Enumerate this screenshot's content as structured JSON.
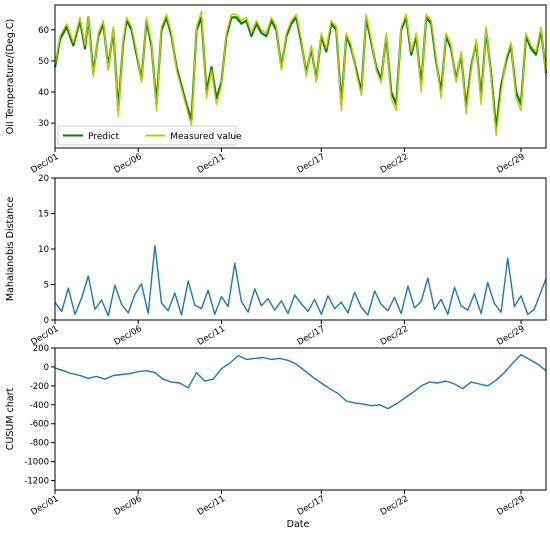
{
  "chart_data": [
    {
      "type": "line",
      "ylabel": "Oil Temperature/(Deg.C)",
      "xlabel": "",
      "ylim": [
        22,
        68
      ],
      "yticks": [
        30,
        40,
        50,
        60
      ],
      "x_ticks": [
        "Dec/01",
        "Dec/06",
        "Dec/11",
        "Dec/17",
        "Dec/22",
        "Dec/29"
      ],
      "grid": false,
      "legend_position": "lower-left",
      "series": [
        {
          "name": "Predict",
          "color": "#008000",
          "x": [
            0,
            0.3,
            0.7,
            1.1,
            1.5,
            1.8,
            2.0,
            2.3,
            2.6,
            2.9,
            3.2,
            3.5,
            3.8,
            4.1,
            4.3,
            4.6,
            4.9,
            5.2,
            5.5,
            5.8,
            6.1,
            6.4,
            6.7,
            7.0,
            7.3,
            7.6,
            7.9,
            8.2,
            8.5,
            8.8,
            9.1,
            9.4,
            9.7,
            10.0,
            10.3,
            10.6,
            10.9,
            11.2,
            11.5,
            11.8,
            12.1,
            12.4,
            12.7,
            13.0,
            13.3,
            13.6,
            13.9,
            14.2,
            14.5,
            14.8,
            15.1,
            15.4,
            15.7,
            16.0,
            16.3,
            16.6,
            16.9,
            17.2,
            17.5,
            17.8,
            18.1,
            18.4,
            18.7,
            19.0,
            19.3,
            19.6,
            19.9,
            20.2,
            20.5,
            20.8,
            21.1,
            21.4,
            21.7,
            22.0,
            22.3,
            22.6,
            22.9,
            23.2,
            23.5,
            23.8,
            24.1,
            24.4,
            24.7,
            25.0,
            25.3,
            25.6,
            25.9,
            26.2,
            26.5,
            26.8,
            27.1,
            27.4,
            27.7,
            28.0,
            28.3,
            28.6,
            28.9,
            29.2,
            29.5
          ],
          "values": [
            48,
            57,
            61,
            55,
            63,
            54,
            64,
            46,
            58,
            62,
            48,
            60,
            34,
            56,
            63,
            60,
            52,
            44,
            63,
            55,
            36,
            60,
            64,
            58,
            48,
            42,
            36,
            31,
            60,
            64,
            40,
            48,
            38,
            43,
            58,
            64,
            64,
            62,
            63,
            58,
            62,
            59,
            58,
            63,
            60,
            48,
            58,
            62,
            64,
            56,
            46,
            54,
            44,
            58,
            53,
            62,
            60,
            36,
            58,
            54,
            47,
            40,
            64,
            56,
            48,
            44,
            58,
            40,
            36,
            60,
            64,
            52,
            58,
            42,
            64,
            62,
            50,
            40,
            58,
            54,
            44,
            52,
            35,
            48,
            56,
            38,
            60,
            46,
            28,
            42,
            50,
            55,
            40,
            36,
            58,
            54,
            52,
            60,
            46
          ]
        },
        {
          "name": "Measured value",
          "color": "#c8c800",
          "x": [
            0,
            0.3,
            0.7,
            1.1,
            1.5,
            1.8,
            2.0,
            2.3,
            2.6,
            2.9,
            3.2,
            3.5,
            3.8,
            4.1,
            4.3,
            4.6,
            4.9,
            5.2,
            5.5,
            5.8,
            6.1,
            6.4,
            6.7,
            7.0,
            7.3,
            7.6,
            7.9,
            8.2,
            8.5,
            8.8,
            9.1,
            9.4,
            9.7,
            10.0,
            10.3,
            10.6,
            10.9,
            11.2,
            11.5,
            11.8,
            12.1,
            12.4,
            12.7,
            13.0,
            13.3,
            13.6,
            13.9,
            14.2,
            14.5,
            14.8,
            15.1,
            15.4,
            15.7,
            16.0,
            16.3,
            16.6,
            16.9,
            17.2,
            17.5,
            17.8,
            18.1,
            18.4,
            18.7,
            19.0,
            19.3,
            19.6,
            19.9,
            20.2,
            20.5,
            20.8,
            21.1,
            21.4,
            21.7,
            22.0,
            22.3,
            22.6,
            22.9,
            23.2,
            23.5,
            23.8,
            24.1,
            24.4,
            24.7,
            25.0,
            25.3,
            25.6,
            25.9,
            26.2,
            26.5,
            26.8,
            27.1,
            27.4,
            27.7,
            28.0,
            28.3,
            28.6,
            28.9,
            29.2,
            29.5
          ],
          "values": [
            49,
            58,
            62,
            56,
            64,
            55,
            64,
            45,
            59,
            63,
            47,
            61,
            32,
            57,
            64,
            61,
            53,
            43,
            64,
            56,
            34,
            61,
            65,
            59,
            47,
            41,
            35,
            29,
            61,
            66,
            38,
            47,
            36,
            42,
            59,
            65,
            65,
            63,
            64,
            59,
            63,
            60,
            59,
            64,
            61,
            47,
            59,
            63,
            65,
            57,
            45,
            55,
            43,
            59,
            54,
            63,
            61,
            34,
            59,
            55,
            46,
            39,
            65,
            57,
            47,
            43,
            59,
            38,
            34,
            61,
            65,
            53,
            59,
            40,
            65,
            63,
            51,
            38,
            59,
            55,
            43,
            53,
            33,
            47,
            57,
            36,
            61,
            45,
            26,
            40,
            51,
            56,
            38,
            34,
            59,
            55,
            53,
            61,
            45
          ]
        }
      ]
    },
    {
      "type": "line",
      "ylabel": "Mahalanobis Distance",
      "xlabel": "",
      "ylim": [
        0,
        20
      ],
      "yticks": [
        0,
        5,
        10,
        15,
        20
      ],
      "x_ticks": [
        "Dec/01",
        "Dec/06",
        "Dec/11",
        "Dec/17",
        "Dec/22",
        "Dec/29"
      ],
      "grid": false,
      "series": [
        {
          "name": "",
          "color": "#1f77b4",
          "x": [
            0,
            0.4,
            0.8,
            1.2,
            1.6,
            2.0,
            2.4,
            2.8,
            3.2,
            3.6,
            4.0,
            4.4,
            4.8,
            5.2,
            5.6,
            6.0,
            6.4,
            6.8,
            7.2,
            7.6,
            8.0,
            8.4,
            8.8,
            9.2,
            9.6,
            10.0,
            10.4,
            10.8,
            11.2,
            11.6,
            12.0,
            12.4,
            12.8,
            13.2,
            13.6,
            14.0,
            14.4,
            14.8,
            15.2,
            15.6,
            16.0,
            16.4,
            16.8,
            17.2,
            17.6,
            18.0,
            18.4,
            18.8,
            19.2,
            19.6,
            20.0,
            20.4,
            20.8,
            21.2,
            21.6,
            22.0,
            22.4,
            22.8,
            23.2,
            23.6,
            24.0,
            24.4,
            24.8,
            25.2,
            25.6,
            26.0,
            26.4,
            26.8,
            27.2,
            27.6,
            28.0,
            28.4,
            28.8,
            29.2,
            29.5
          ],
          "values": [
            2.5,
            1.2,
            4.5,
            0.8,
            3.1,
            6.2,
            1.5,
            2.8,
            0.6,
            4.9,
            2.2,
            1.0,
            3.6,
            5.1,
            0.9,
            10.5,
            2.4,
            1.3,
            3.8,
            0.7,
            5.5,
            2.1,
            1.6,
            4.2,
            0.8,
            3.3,
            1.9,
            8.0,
            2.6,
            1.1,
            4.4,
            2.0,
            3.0,
            1.4,
            2.7,
            0.9,
            3.5,
            2.3,
            1.2,
            2.9,
            0.8,
            3.4,
            1.6,
            2.5,
            1.0,
            3.9,
            1.8,
            0.7,
            4.1,
            2.2,
            1.3,
            3.2,
            0.9,
            4.8,
            1.7,
            2.6,
            5.9,
            1.5,
            2.9,
            0.8,
            4.6,
            2.0,
            1.4,
            3.7,
            0.9,
            5.3,
            2.3,
            1.1,
            8.7,
            1.9,
            3.4,
            0.8,
            1.5,
            4.0,
            5.8
          ]
        }
      ]
    },
    {
      "type": "line",
      "ylabel": "CUSUM chart",
      "xlabel": "Date",
      "ylim": [
        -1300,
        200
      ],
      "yticks": [
        200,
        0,
        -200,
        -400,
        -600,
        -800,
        -1000,
        -1200
      ],
      "x_ticks": [
        "Dec/01",
        "Dec/06",
        "Dec/11",
        "Dec/17",
        "Dec/22",
        "Dec/29"
      ],
      "grid": false,
      "series": [
        {
          "name": "",
          "color": "#1f77b4",
          "x": [
            0,
            0.5,
            1.0,
            1.5,
            2.0,
            2.5,
            3.0,
            3.5,
            4.0,
            4.5,
            5.0,
            5.5,
            6.0,
            6.5,
            7.0,
            7.5,
            8.0,
            8.5,
            9.0,
            9.5,
            10.0,
            10.5,
            11.0,
            11.5,
            12.0,
            12.5,
            13.0,
            13.5,
            14.0,
            14.5,
            15.0,
            15.5,
            16.0,
            16.5,
            17.0,
            17.5,
            18.0,
            18.5,
            19.0,
            19.5,
            20.0,
            20.5,
            21.0,
            21.5,
            22.0,
            22.5,
            23.0,
            23.5,
            24.0,
            24.5,
            25.0,
            25.5,
            26.0,
            26.5,
            27.0,
            27.5,
            28.0,
            28.5,
            29.0,
            29.5
          ],
          "values": [
            -10,
            -40,
            -70,
            -90,
            -120,
            -100,
            -130,
            -90,
            -80,
            -70,
            -50,
            -40,
            -60,
            -130,
            -160,
            -170,
            -220,
            -60,
            -150,
            -130,
            -20,
            40,
            120,
            80,
            90,
            100,
            80,
            90,
            70,
            30,
            -40,
            -110,
            -170,
            -230,
            -280,
            -360,
            -380,
            -390,
            -410,
            -400,
            -440,
            -390,
            -330,
            -270,
            -200,
            -160,
            -170,
            -150,
            -180,
            -230,
            -160,
            -180,
            -200,
            -140,
            -60,
            40,
            130,
            80,
            30,
            -40
          ]
        }
      ]
    }
  ]
}
